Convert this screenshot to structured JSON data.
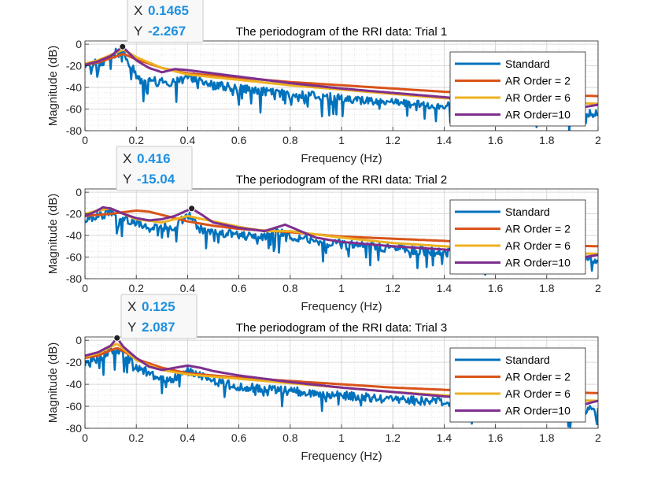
{
  "chart_data": [
    {
      "type": "line",
      "title": "The periodogram of the RRI data: Trial 1",
      "xlabel": "Frequency (Hz)",
      "ylabel": "Magnitude (dB)",
      "xlim": [
        0,
        2
      ],
      "ylim": [
        -80,
        3
      ],
      "xticks": [
        "0",
        "0.2",
        "0.4",
        "0.6",
        "0.8",
        "1",
        "1.2",
        "1.4",
        "1.6",
        "1.8",
        "2"
      ],
      "yticks": [
        "0",
        "-20",
        "-40",
        "-60",
        "-80"
      ],
      "grid": true,
      "legend_position": "right",
      "datatip": {
        "x_label": "X",
        "x_value": "0.1465",
        "y_label": "Y",
        "y_value": "-2.267",
        "x": 0.1465,
        "y": -2.267
      },
      "series": [
        {
          "name": "Standard",
          "color": "#0072BD",
          "x": [
            0,
            0.04,
            0.08,
            0.1,
            0.12,
            0.13,
            0.1465,
            0.16,
            0.18,
            0.2,
            0.22,
            0.24,
            0.26,
            0.28,
            0.3,
            0.35,
            0.4,
            0.5,
            0.6,
            0.7,
            0.8,
            0.9,
            1.0,
            1.1,
            1.2,
            1.3,
            1.4,
            1.5,
            1.6,
            1.7,
            1.8,
            1.9,
            2.0
          ],
          "y": [
            -22,
            -18,
            -15,
            -12,
            -8,
            -10,
            -2.3,
            -12,
            -20,
            -28,
            -34,
            -38,
            -30,
            -35,
            -34,
            -36,
            -28,
            -38,
            -40,
            -44,
            -46,
            -48,
            -50,
            -52,
            -54,
            -55,
            -57,
            -58,
            -59,
            -60,
            -62,
            -63,
            -65
          ],
          "noise": 8
        },
        {
          "name": "AR Order = 2",
          "color": "#D95319",
          "x": [
            0,
            0.05,
            0.1,
            0.15,
            0.2,
            0.3,
            0.4,
            0.6,
            0.8,
            1.0,
            1.2,
            1.4,
            1.6,
            1.8,
            2.0
          ],
          "y": [
            -19,
            -17,
            -13,
            -9,
            -14,
            -22,
            -27,
            -31,
            -35,
            -38,
            -41,
            -44,
            -46,
            -47,
            -48
          ]
        },
        {
          "name": "AR Order = 6",
          "color": "#EDB120",
          "x": [
            0,
            0.05,
            0.1,
            0.15,
            0.2,
            0.3,
            0.4,
            0.6,
            0.8,
            1.0,
            1.2,
            1.4,
            1.6,
            1.8,
            2.0
          ],
          "y": [
            -18,
            -15,
            -10,
            -5,
            -12,
            -22,
            -28,
            -33,
            -38,
            -42,
            -46,
            -50,
            -52,
            -54,
            -55
          ]
        },
        {
          "name": "AR Order=10",
          "color": "#7E2F8E",
          "x": [
            0,
            0.05,
            0.1,
            0.1465,
            0.2,
            0.25,
            0.3,
            0.35,
            0.4,
            0.5,
            0.6,
            0.8,
            1.0,
            1.2,
            1.4,
            1.6,
            1.8,
            1.95,
            2.0
          ],
          "y": [
            -19,
            -16,
            -11,
            -2.3,
            -15,
            -22,
            -26,
            -23,
            -24,
            -27,
            -30,
            -36,
            -41,
            -45,
            -49,
            -53,
            -57,
            -58,
            -56
          ]
        }
      ]
    },
    {
      "type": "line",
      "title": "The periodogram of the RRI data: Trial 2",
      "xlabel": "Frequency (Hz)",
      "ylabel": "Magnitude (dB)",
      "xlim": [
        0,
        2
      ],
      "ylim": [
        -80,
        3
      ],
      "xticks": [
        "0",
        "0.2",
        "0.4",
        "0.6",
        "0.8",
        "1",
        "1.2",
        "1.4",
        "1.6",
        "1.8",
        "2"
      ],
      "yticks": [
        "0",
        "-20",
        "-40",
        "-60",
        "-80"
      ],
      "grid": true,
      "legend_position": "right",
      "datatip": {
        "x_label": "X",
        "x_value": "0.416",
        "y_label": "Y",
        "y_value": "-15.04",
        "x": 0.416,
        "y": -15.04
      },
      "series": [
        {
          "name": "Standard",
          "color": "#0072BD",
          "x": [
            0,
            0.05,
            0.1,
            0.15,
            0.2,
            0.25,
            0.3,
            0.35,
            0.4,
            0.45,
            0.5,
            0.6,
            0.7,
            0.75,
            0.8,
            0.9,
            1.0,
            1.2,
            1.4,
            1.6,
            1.8,
            2.0
          ],
          "y": [
            -25,
            -22,
            -18,
            -24,
            -28,
            -32,
            -30,
            -32,
            -20,
            -34,
            -36,
            -40,
            -42,
            -36,
            -40,
            -46,
            -48,
            -52,
            -56,
            -58,
            -60,
            -64
          ],
          "noise": 8
        },
        {
          "name": "AR Order = 2",
          "color": "#D95319",
          "x": [
            0,
            0.1,
            0.2,
            0.25,
            0.3,
            0.4,
            0.5,
            0.6,
            0.8,
            1.0,
            1.2,
            1.4,
            1.6,
            1.8,
            2.0
          ],
          "y": [
            -22,
            -20,
            -17,
            -18,
            -21,
            -27,
            -31,
            -34,
            -37,
            -41,
            -43,
            -45,
            -47,
            -49,
            -50
          ]
        },
        {
          "name": "AR Order = 6",
          "color": "#EDB120",
          "x": [
            0,
            0.05,
            0.1,
            0.15,
            0.2,
            0.3,
            0.4,
            0.5,
            0.6,
            0.7,
            0.8,
            1.0,
            1.2,
            1.4,
            1.6,
            1.8,
            2.0
          ],
          "y": [
            -20,
            -17,
            -15,
            -20,
            -25,
            -28,
            -22,
            -27,
            -32,
            -36,
            -36,
            -42,
            -47,
            -50,
            -53,
            -56,
            -57
          ]
        },
        {
          "name": "AR Order=10",
          "color": "#7E2F8E",
          "x": [
            0,
            0.04,
            0.07,
            0.1,
            0.15,
            0.2,
            0.25,
            0.3,
            0.35,
            0.416,
            0.45,
            0.5,
            0.6,
            0.7,
            0.78,
            0.85,
            0.9,
            1.0,
            1.2,
            1.4,
            1.6,
            1.8,
            1.95,
            2.0
          ],
          "y": [
            -22,
            -18,
            -14,
            -15,
            -20,
            -24,
            -26,
            -25,
            -22,
            -15,
            -20,
            -28,
            -33,
            -36,
            -30,
            -37,
            -42,
            -46,
            -50,
            -53,
            -57,
            -59,
            -60,
            -58
          ]
        }
      ]
    },
    {
      "type": "line",
      "title": "The periodogram of the RRI data: Trial 3",
      "xlabel": "Frequency (Hz)",
      "ylabel": "Magnitude (dB)",
      "xlim": [
        0,
        2
      ],
      "ylim": [
        -80,
        3
      ],
      "xticks": [
        "0",
        "0.2",
        "0.4",
        "0.6",
        "0.8",
        "1",
        "1.2",
        "1.4",
        "1.6",
        "1.8",
        "2"
      ],
      "yticks": [
        "0",
        "-20",
        "-40",
        "-60",
        "-80"
      ],
      "grid": true,
      "legend_position": "right",
      "datatip": {
        "x_label": "X",
        "x_value": "0.125",
        "y_label": "Y",
        "y_value": "2.087",
        "x": 0.125,
        "y": 2.087
      },
      "series": [
        {
          "name": "Standard",
          "color": "#0072BD",
          "x": [
            0,
            0.05,
            0.1,
            0.125,
            0.15,
            0.2,
            0.25,
            0.3,
            0.35,
            0.4,
            0.5,
            0.6,
            0.7,
            0.8,
            0.9,
            1.0,
            1.2,
            1.4,
            1.6,
            1.8,
            2.0
          ],
          "y": [
            -20,
            -16,
            -10,
            -8,
            -12,
            -24,
            -30,
            -36,
            -34,
            -28,
            -38,
            -42,
            -44,
            -46,
            -48,
            -50,
            -54,
            -56,
            -58,
            -60,
            -64
          ],
          "noise": 8
        },
        {
          "name": "AR Order = 2",
          "color": "#D95319",
          "x": [
            0,
            0.05,
            0.1,
            0.125,
            0.15,
            0.2,
            0.3,
            0.4,
            0.6,
            0.8,
            1.0,
            1.2,
            1.4,
            1.6,
            1.8,
            2.0
          ],
          "y": [
            -16,
            -14,
            -9,
            -7,
            -10,
            -17,
            -25,
            -30,
            -34,
            -37,
            -40,
            -43,
            -45,
            -46,
            -47,
            -48
          ]
        },
        {
          "name": "AR Order = 6",
          "color": "#EDB120",
          "x": [
            0,
            0.05,
            0.1,
            0.125,
            0.15,
            0.2,
            0.3,
            0.4,
            0.6,
            0.8,
            1.0,
            1.2,
            1.4,
            1.6,
            1.8,
            2.0
          ],
          "y": [
            -15,
            -12,
            -6,
            -3,
            -8,
            -18,
            -27,
            -31,
            -35,
            -39,
            -43,
            -47,
            -50,
            -52,
            -54,
            -55
          ]
        },
        {
          "name": "AR Order=10",
          "color": "#7E2F8E",
          "x": [
            0,
            0.05,
            0.1,
            0.125,
            0.15,
            0.2,
            0.25,
            0.3,
            0.35,
            0.4,
            0.45,
            0.5,
            0.6,
            0.8,
            1.0,
            1.2,
            1.4,
            1.6,
            1.8,
            1.95,
            2.0
          ],
          "y": [
            -14,
            -11,
            -5,
            2.1,
            -6,
            -16,
            -24,
            -27,
            -25,
            -23,
            -25,
            -28,
            -32,
            -38,
            -43,
            -47,
            -51,
            -54,
            -57,
            -58,
            -55
          ]
        }
      ]
    }
  ]
}
